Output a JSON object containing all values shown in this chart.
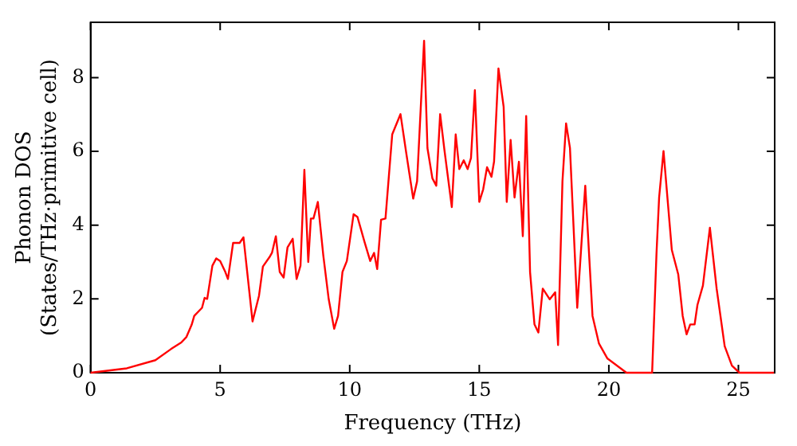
{
  "chart_data": {
    "type": "line",
    "xlabel": "Frequency (THz)",
    "ylabel": "Phonon DOS\n(States/THz·primitive cell)",
    "xlim": [
      0,
      26.4
    ],
    "ylim": [
      0,
      9.5
    ],
    "xticks": [
      0,
      5,
      10,
      15,
      20,
      25
    ],
    "yticks": [
      0,
      2,
      4,
      6,
      8
    ],
    "grid": false,
    "legend": false,
    "marker": "none",
    "line_style": "solid",
    "series": [
      {
        "color": "#ff0000",
        "x": [
          0,
          1.4,
          2.5,
          3.1,
          3.5,
          3.7,
          3.9,
          4.0,
          4.3,
          4.4,
          4.5,
          4.7,
          4.85,
          5.0,
          5.2,
          5.3,
          5.5,
          5.75,
          5.9,
          6.25,
          6.5,
          6.65,
          6.9,
          7.0,
          7.15,
          7.3,
          7.45,
          7.6,
          7.8,
          7.95,
          8.1,
          8.25,
          8.4,
          8.5,
          8.6,
          8.77,
          8.98,
          9.19,
          9.4,
          9.55,
          9.72,
          9.89,
          10.15,
          10.3,
          10.57,
          10.79,
          10.94,
          11.06,
          11.21,
          11.38,
          11.64,
          11.96,
          12.17,
          12.45,
          12.6,
          12.87,
          13.0,
          13.19,
          13.34,
          13.49,
          13.66,
          13.94,
          14.09,
          14.23,
          14.4,
          14.55,
          14.68,
          14.83,
          15.0,
          15.15,
          15.3,
          15.47,
          15.57,
          15.74,
          15.94,
          16.06,
          16.21,
          16.36,
          16.53,
          16.68,
          16.81,
          16.96,
          17.13,
          17.28,
          17.45,
          17.72,
          17.93,
          18.04,
          18.21,
          18.35,
          18.5,
          18.78,
          19.09,
          19.37,
          19.62,
          19.94,
          20.68,
          21.67,
          21.84,
          21.94,
          22.11,
          22.43,
          22.68,
          22.85,
          23.0,
          23.14,
          23.31,
          23.42,
          23.63,
          23.9,
          24.16,
          24.47,
          24.75,
          25.04,
          26.37
        ],
        "values": [
          0,
          0.12,
          0.34,
          0.64,
          0.82,
          0.97,
          1.3,
          1.54,
          1.76,
          2.03,
          2.0,
          2.9,
          3.1,
          3.03,
          2.73,
          2.54,
          3.52,
          3.52,
          3.67,
          1.39,
          2.09,
          2.88,
          3.13,
          3.25,
          3.7,
          2.73,
          2.58,
          3.4,
          3.63,
          2.54,
          2.9,
          5.5,
          3.0,
          4.18,
          4.18,
          4.63,
          3.18,
          1.99,
          1.19,
          1.54,
          2.73,
          3.03,
          4.3,
          4.22,
          3.55,
          3.03,
          3.25,
          2.81,
          4.15,
          4.18,
          6.46,
          7.01,
          6.01,
          4.72,
          5.19,
          9.0,
          6.09,
          5.27,
          5.07,
          7.01,
          6.01,
          4.49,
          6.46,
          5.52,
          5.76,
          5.52,
          5.82,
          7.66,
          4.63,
          4.97,
          5.57,
          5.31,
          5.72,
          8.25,
          7.21,
          4.63,
          6.31,
          4.75,
          5.72,
          3.7,
          6.96,
          2.73,
          1.31,
          1.09,
          2.28,
          1.99,
          2.18,
          0.75,
          5.19,
          6.76,
          6.09,
          1.76,
          5.07,
          1.54,
          0.79,
          0.39,
          0,
          0,
          3.25,
          4.75,
          6.01,
          3.33,
          2.66,
          1.54,
          1.04,
          1.31,
          1.31,
          1.84,
          2.36,
          3.93,
          2.28,
          0.72,
          0.19,
          0,
          0
        ]
      }
    ]
  }
}
